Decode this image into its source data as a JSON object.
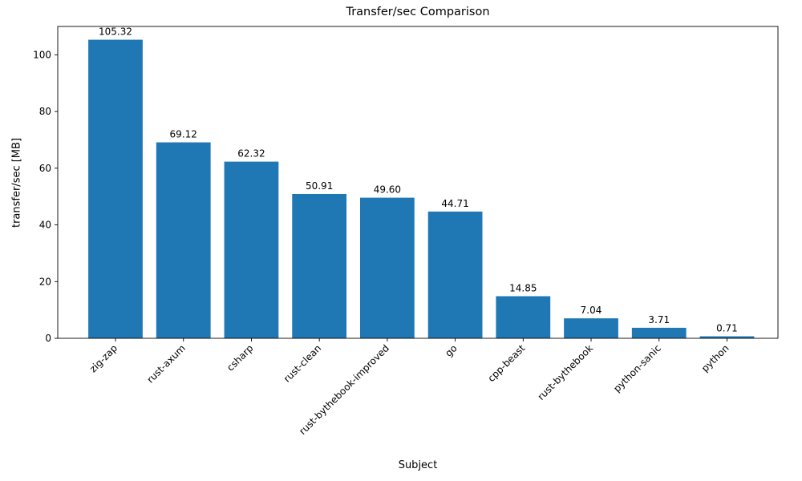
{
  "chart_data": {
    "type": "bar",
    "title": "Transfer/sec Comparison",
    "xlabel": "Subject",
    "ylabel": "transfer/sec [MB]",
    "categories": [
      "zig-zap",
      "rust-axum",
      "csharp",
      "rust-clean",
      "rust-bythebook-improved",
      "go",
      "cpp-beast",
      "rust-bythebook",
      "python-sanic",
      "python"
    ],
    "values": [
      105.32,
      69.12,
      62.32,
      50.91,
      49.6,
      44.71,
      14.85,
      7.04,
      3.71,
      0.71
    ],
    "value_labels": [
      "105.32",
      "69.12",
      "62.32",
      "50.91",
      "49.60",
      "44.71",
      "14.85",
      "7.04",
      "3.71",
      "0.71"
    ],
    "yticks": [
      0,
      20,
      40,
      60,
      80,
      100
    ],
    "ylim": [
      0,
      110
    ],
    "bar_color": "#1f77b4",
    "axis_color": "#000000",
    "grid": false,
    "legend_position": "none"
  }
}
